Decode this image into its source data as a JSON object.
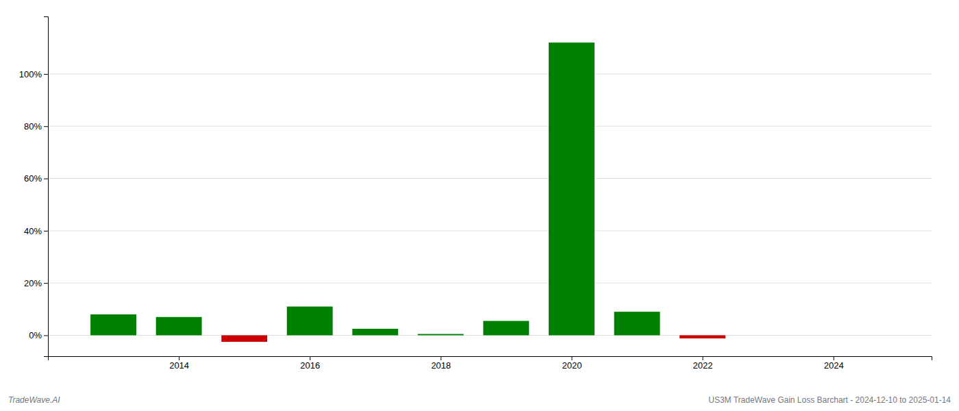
{
  "chart_data": {
    "type": "bar",
    "x": [
      2013,
      2014,
      2015,
      2016,
      2017,
      2018,
      2019,
      2020,
      2021,
      2022,
      2023
    ],
    "values": [
      0.08,
      0.07,
      -0.025,
      0.11,
      0.025,
      0.005,
      0.055,
      1.12,
      0.09,
      -0.012,
      0.0
    ],
    "colors": [
      "#008000",
      "#008000",
      "#cc0000",
      "#008000",
      "#008000",
      "#008000",
      "#008000",
      "#008000",
      "#008000",
      "#cc0000",
      "#cc0000"
    ],
    "xlim": [
      2012.0,
      2025.5
    ],
    "xticks": [
      2014,
      2016,
      2018,
      2020,
      2022,
      2024
    ],
    "ylim": [
      -0.08,
      1.22
    ],
    "yticks": [
      {
        "value": 0.0,
        "label": "0%"
      },
      {
        "value": 0.2,
        "label": "20%"
      },
      {
        "value": 0.4,
        "label": "40%"
      },
      {
        "value": 0.6,
        "label": "60%"
      },
      {
        "value": 0.8,
        "label": "80%"
      },
      {
        "value": 1.0,
        "label": "100%"
      }
    ],
    "grid": true,
    "annotations": [
      "TradeWave.AI",
      "US3M TradeWave Gain Loss Barchart - 2024-12-10 to 2025-01-14"
    ]
  }
}
